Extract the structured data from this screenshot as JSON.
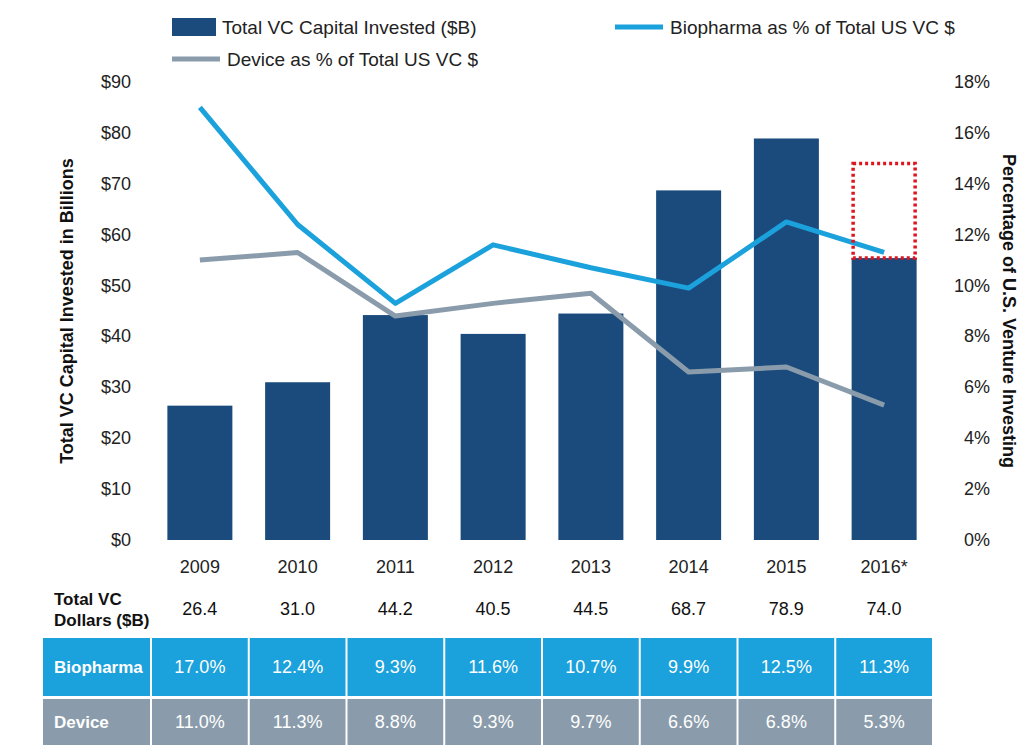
{
  "chart_data": {
    "type": "bar",
    "y_label": "Total VC Capital Invested in Billions",
    "y2_label": "Percentage of U.S. Venture Investing",
    "categories": [
      "2009",
      "2010",
      "2011",
      "2012",
      "2013",
      "2014",
      "2015",
      "2016*"
    ],
    "ylim": [
      0,
      90
    ],
    "yticks": [
      {
        "value": 0,
        "label": "$0"
      },
      {
        "value": 10,
        "label": "$10"
      },
      {
        "value": 20,
        "label": "$20"
      },
      {
        "value": 30,
        "label": "$30"
      },
      {
        "value": 40,
        "label": "$40"
      },
      {
        "value": 50,
        "label": "$50"
      },
      {
        "value": 60,
        "label": "$60"
      },
      {
        "value": 70,
        "label": "$70"
      },
      {
        "value": 80,
        "label": "$80"
      },
      {
        "value": 90,
        "label": "$90"
      }
    ],
    "y2lim": [
      0,
      18
    ],
    "y2ticks": [
      {
        "value": 0,
        "label": "0%"
      },
      {
        "value": 2,
        "label": "2%"
      },
      {
        "value": 4,
        "label": "4%"
      },
      {
        "value": 6,
        "label": "6%"
      },
      {
        "value": 8,
        "label": "8%"
      },
      {
        "value": 10,
        "label": "10%"
      },
      {
        "value": 12,
        "label": "12%"
      },
      {
        "value": 14,
        "label": "14%"
      },
      {
        "value": 16,
        "label": "16%"
      },
      {
        "value": 18,
        "label": "18%"
      }
    ],
    "grid": false,
    "legend": "top",
    "series": [
      {
        "name": "Total VC Capital Invested ($B)",
        "type": "bar",
        "color": "#1a4b7c",
        "values": [
          26.4,
          31.0,
          44.2,
          40.5,
          44.5,
          68.7,
          78.9,
          55.4
        ]
      },
      {
        "name": "Biopharma as % of Total US VC $",
        "type": "line",
        "axis": "y2",
        "color": "#1ba1db",
        "values": [
          17.0,
          12.4,
          9.3,
          11.6,
          10.7,
          9.9,
          12.5,
          11.3
        ]
      },
      {
        "name": "Device as % of Total US VC $",
        "type": "line",
        "axis": "y2",
        "color": "#8a9cab",
        "values": [
          11.0,
          11.3,
          8.8,
          9.3,
          9.7,
          6.6,
          6.8,
          5.3
        ]
      }
    ],
    "projection": {
      "category": "2016*",
      "from": 55.4,
      "to": 74.0,
      "color": "#e0141e",
      "line_style": "dotted"
    }
  },
  "table": {
    "rows": [
      {
        "label": [
          "Total VC",
          "Dollars ($B)"
        ],
        "values": [
          "26.4",
          "31.0",
          "44.2",
          "40.5",
          "44.5",
          "68.7",
          "78.9",
          "74.0"
        ]
      },
      {
        "label": [
          "Biopharma"
        ],
        "color": "#1ba1db",
        "values": [
          "17.0%",
          "12.4%",
          "9.3%",
          "11.6%",
          "10.7%",
          "9.9%",
          "12.5%",
          "11.3%"
        ]
      },
      {
        "label": [
          "Device"
        ],
        "color": "#8a9cab",
        "values": [
          "11.0%",
          "11.3%",
          "8.8%",
          "9.3%",
          "9.7%",
          "6.6%",
          "6.8%",
          "5.3%"
        ]
      }
    ]
  }
}
